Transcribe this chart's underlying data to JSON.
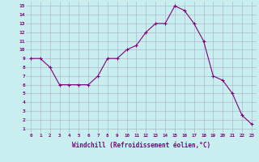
{
  "x": [
    0,
    1,
    2,
    3,
    4,
    5,
    6,
    7,
    8,
    9,
    10,
    11,
    12,
    13,
    14,
    15,
    16,
    17,
    18,
    19,
    20,
    21,
    22,
    23
  ],
  "y": [
    9,
    9,
    8,
    6,
    6,
    6,
    6,
    7,
    9,
    9,
    10,
    10.5,
    12,
    13,
    13,
    15,
    14.5,
    13,
    11,
    7,
    6.5,
    5,
    2.5,
    1.5
  ],
  "line_color": "#800080",
  "marker": "+",
  "marker_color": "#800080",
  "bg_color": "#c8eef0",
  "grid_color": "#b0b8d0",
  "xlabel": "Windchill (Refroidissement éolien,°C)",
  "xlabel_color": "#800080",
  "tick_color": "#800080",
  "ylim": [
    0.5,
    15.5
  ],
  "xlim": [
    -0.5,
    23.5
  ],
  "yticks": [
    1,
    2,
    3,
    4,
    5,
    6,
    7,
    8,
    9,
    10,
    11,
    12,
    13,
    14,
    15
  ],
  "xticks": [
    0,
    1,
    2,
    3,
    4,
    5,
    6,
    7,
    8,
    9,
    10,
    11,
    12,
    13,
    14,
    15,
    16,
    17,
    18,
    19,
    20,
    21,
    22,
    23
  ],
  "font_family": "monospace"
}
